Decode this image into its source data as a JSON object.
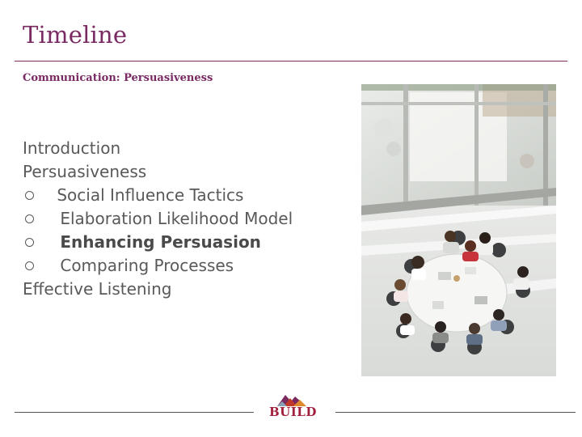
{
  "slide": {
    "title": "Timeline",
    "subtitle": "Communication: Persuasiveness"
  },
  "outline": {
    "items": [
      {
        "label": "Introduction",
        "level": 0,
        "bold": false
      },
      {
        "label": "Persuasiveness",
        "level": 0,
        "bold": false
      },
      {
        "label": "Social Influence Tactics",
        "level": 1,
        "bold": false
      },
      {
        "label": "Elaboration Likelihood Model",
        "level": 1,
        "bold": false
      },
      {
        "label": "Enhancing Persuasion",
        "level": 1,
        "bold": true
      },
      {
        "label": "Comparing Processes",
        "level": 1,
        "bold": false
      },
      {
        "label": "Effective Listening",
        "level": 0,
        "bold": false
      }
    ]
  },
  "logo": {
    "text": "BUILD"
  },
  "colors": {
    "accent": "#7a2a63",
    "body_text": "#595959",
    "logo_red": "#a01f3c"
  }
}
